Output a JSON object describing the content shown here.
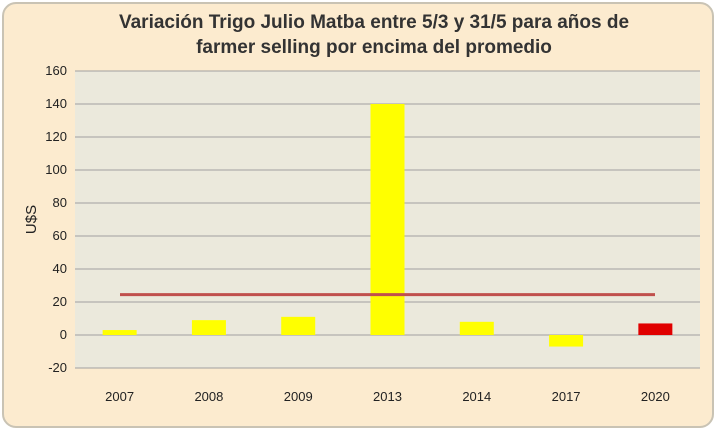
{
  "chart_data": {
    "type": "bar",
    "title": "Variación Trigo Julio Matba entre 5/3 y 31/5 para años de\nfarmer selling por encima del promedio",
    "ylabel": "U$S",
    "xlabel": "",
    "categories": [
      "2007",
      "2008",
      "2009",
      "2013",
      "2014",
      "2017",
      "2020"
    ],
    "values": [
      3,
      9,
      11,
      140,
      8,
      -7,
      7
    ],
    "bar_colors": [
      "#ffff00",
      "#ffff00",
      "#ffff00",
      "#ffff00",
      "#ffff00",
      "#ffff00",
      "#e00000"
    ],
    "average_line": {
      "value": 24.5,
      "color": "#c0504d"
    },
    "ylim": [
      -20,
      160
    ],
    "yticks": [
      "160",
      "140",
      "120",
      "100",
      "80",
      "60",
      "40",
      "20",
      "0",
      "-20"
    ],
    "grid": true,
    "plot_background": "#ebe9dc",
    "gridline_color": "#a0a0a0"
  }
}
